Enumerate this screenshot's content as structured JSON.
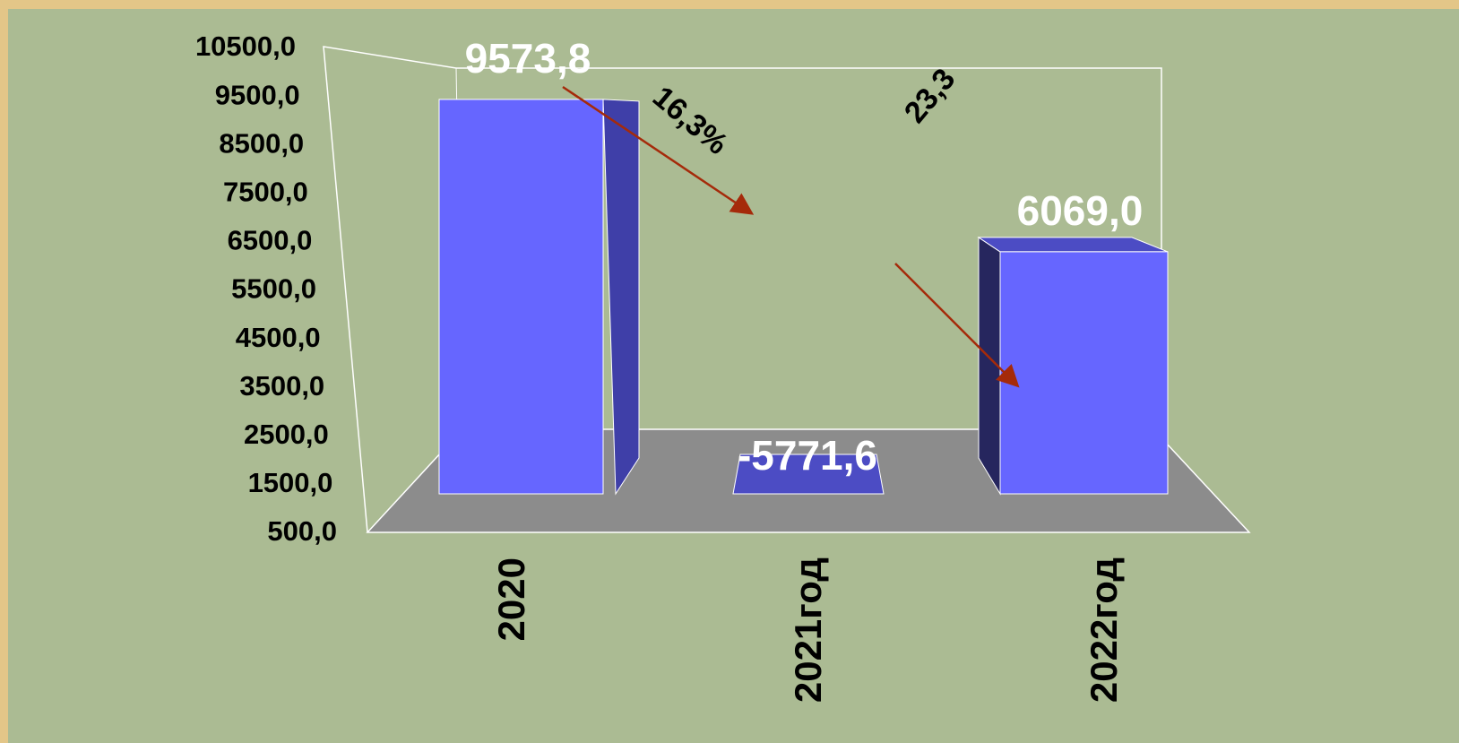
{
  "chart_data": {
    "type": "bar3d",
    "categories": [
      "2020",
      "2021год",
      "2022год"
    ],
    "values": [
      9573.8,
      -5771.6,
      6069.0
    ],
    "value_labels": [
      "9573,8",
      "-5771,6",
      "6069,0"
    ],
    "color": "#6666ff",
    "ylim": [
      500,
      10500
    ],
    "yticks": [
      {
        "value": 10500,
        "label": "10500,0"
      },
      {
        "value": 9500,
        "label": "9500,0"
      },
      {
        "value": 8500,
        "label": "8500,0"
      },
      {
        "value": 7500,
        "label": "7500,0"
      },
      {
        "value": 6500,
        "label": "6500,0"
      },
      {
        "value": 5500,
        "label": "5500,0"
      },
      {
        "value": 4500,
        "label": "4500,0"
      },
      {
        "value": 3500,
        "label": "3500,0"
      },
      {
        "value": 2500,
        "label": "2500,0"
      },
      {
        "value": 1500,
        "label": "1500,0"
      },
      {
        "value": 500,
        "label": "500,0"
      }
    ],
    "annotations": [
      "16,3%",
      "23,3"
    ]
  }
}
